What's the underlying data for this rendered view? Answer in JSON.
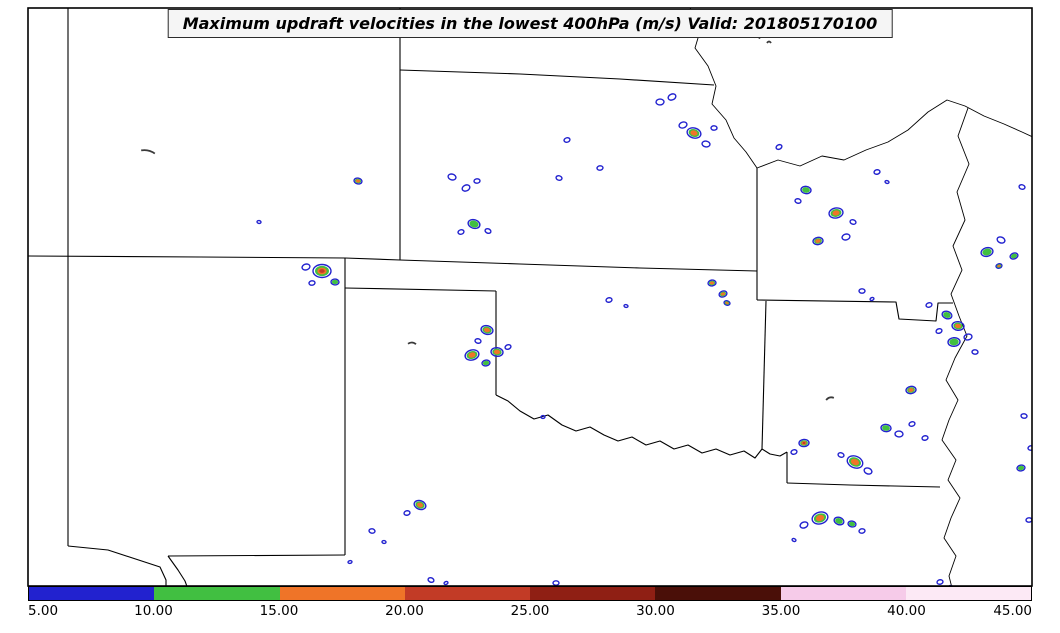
{
  "title": "Maximum updraft velocities in the lowest 400hPa (m/s) Valid: 201805170100",
  "chart_data": {
    "type": "heatmap",
    "subtype": "geographic-contour-map",
    "variable": "Maximum updraft velocities in the lowest 400hPa",
    "units": "m/s",
    "valid_time": "201805170100",
    "region": "US Central Plains (CO, NE, KS, OK, TX panhandle, NM, MO, AR)",
    "colorbar": {
      "min": 5.0,
      "max": 45.0,
      "ticks": [
        "5.00",
        "10.00",
        "15.00",
        "20.00",
        "25.00",
        "30.00",
        "35.00",
        "40.00",
        "45.00"
      ],
      "segments": [
        {
          "range": [
            5,
            10
          ],
          "color": "#2222cf"
        },
        {
          "range": [
            10,
            15
          ],
          "color": "#41bf41"
        },
        {
          "range": [
            15,
            20
          ],
          "color": "#ef7428"
        },
        {
          "range": [
            20,
            25
          ],
          "color": "#c23b26"
        },
        {
          "range": [
            25,
            30
          ],
          "color": "#8f1f14"
        },
        {
          "range": [
            30,
            35
          ],
          "color": "#4a0f08"
        },
        {
          "range": [
            35,
            40
          ],
          "color": "#f6cbe9"
        },
        {
          "range": [
            40,
            45
          ],
          "color": "#fce9f5"
        }
      ]
    },
    "level_colors": {
      "blue": "#2222cf",
      "green": "#41bf41",
      "orange": "#ef7428",
      "red": "#c23b26",
      "dash": "#3a3a3a"
    },
    "cells": [
      [
        660,
        102,
        4,
        "b"
      ],
      [
        672,
        97,
        4,
        "b"
      ],
      [
        683,
        125,
        4,
        "b"
      ],
      [
        694,
        133,
        7,
        "o"
      ],
      [
        706,
        144,
        4,
        "b"
      ],
      [
        714,
        128,
        3,
        "b"
      ],
      [
        757,
        38,
        3,
        "d"
      ],
      [
        769,
        43,
        2,
        "d"
      ],
      [
        567,
        140,
        3,
        "b"
      ],
      [
        600,
        168,
        3,
        "b"
      ],
      [
        559,
        178,
        3,
        "b"
      ],
      [
        452,
        177,
        4,
        "b"
      ],
      [
        466,
        188,
        4,
        "b"
      ],
      [
        477,
        181,
        3,
        "b"
      ],
      [
        358,
        181,
        4,
        "o"
      ],
      [
        259,
        222,
        2,
        "b"
      ],
      [
        148,
        152,
        7,
        "d"
      ],
      [
        474,
        224,
        6,
        "g"
      ],
      [
        461,
        232,
        3,
        "b"
      ],
      [
        488,
        231,
        3,
        "b"
      ],
      [
        779,
        147,
        3,
        "b"
      ],
      [
        806,
        190,
        5,
        "g"
      ],
      [
        798,
        201,
        3,
        "b"
      ],
      [
        836,
        213,
        7,
        "o"
      ],
      [
        818,
        241,
        5,
        "o"
      ],
      [
        846,
        237,
        4,
        "b"
      ],
      [
        853,
        222,
        3,
        "b"
      ],
      [
        877,
        172,
        3,
        "b"
      ],
      [
        887,
        182,
        2,
        "b"
      ],
      [
        987,
        252,
        6,
        "g"
      ],
      [
        1001,
        240,
        4,
        "b"
      ],
      [
        1014,
        256,
        4,
        "g"
      ],
      [
        999,
        266,
        3,
        "o"
      ],
      [
        1022,
        187,
        3,
        "b"
      ],
      [
        322,
        271,
        9,
        "r"
      ],
      [
        306,
        267,
        4,
        "b"
      ],
      [
        335,
        282,
        4,
        "g"
      ],
      [
        312,
        283,
        3,
        "b"
      ],
      [
        609,
        300,
        3,
        "b"
      ],
      [
        626,
        306,
        2,
        "b"
      ],
      [
        712,
        283,
        4,
        "o"
      ],
      [
        723,
        294,
        4,
        "o"
      ],
      [
        727,
        303,
        3,
        "o"
      ],
      [
        487,
        330,
        6,
        "o"
      ],
      [
        478,
        341,
        3,
        "b"
      ],
      [
        472,
        355,
        7,
        "o"
      ],
      [
        497,
        352,
        6,
        "o"
      ],
      [
        486,
        363,
        4,
        "g"
      ],
      [
        508,
        347,
        3,
        "b"
      ],
      [
        412,
        344,
        4,
        "d"
      ],
      [
        947,
        315,
        5,
        "g"
      ],
      [
        958,
        326,
        6,
        "o"
      ],
      [
        954,
        342,
        6,
        "g"
      ],
      [
        968,
        337,
        4,
        "b"
      ],
      [
        939,
        331,
        3,
        "b"
      ],
      [
        975,
        352,
        3,
        "b"
      ],
      [
        929,
        305,
        3,
        "b"
      ],
      [
        862,
        291,
        3,
        "b"
      ],
      [
        872,
        299,
        2,
        "b"
      ],
      [
        911,
        390,
        5,
        "o"
      ],
      [
        830,
        399,
        4,
        "d"
      ],
      [
        886,
        428,
        5,
        "g"
      ],
      [
        899,
        434,
        4,
        "b"
      ],
      [
        912,
        424,
        3,
        "b"
      ],
      [
        925,
        438,
        3,
        "b"
      ],
      [
        855,
        462,
        8,
        "o"
      ],
      [
        868,
        471,
        4,
        "b"
      ],
      [
        841,
        455,
        3,
        "b"
      ],
      [
        804,
        443,
        5,
        "r"
      ],
      [
        794,
        452,
        3,
        "b"
      ],
      [
        820,
        518,
        8,
        "o"
      ],
      [
        839,
        521,
        5,
        "g"
      ],
      [
        852,
        524,
        4,
        "g"
      ],
      [
        804,
        525,
        4,
        "b"
      ],
      [
        862,
        531,
        3,
        "b"
      ],
      [
        794,
        540,
        2,
        "b"
      ],
      [
        1024,
        416,
        3,
        "b"
      ],
      [
        1021,
        468,
        4,
        "g"
      ],
      [
        1031,
        448,
        3,
        "b"
      ],
      [
        1029,
        520,
        3,
        "b"
      ],
      [
        420,
        505,
        6,
        "o"
      ],
      [
        407,
        513,
        3,
        "b"
      ],
      [
        372,
        531,
        3,
        "b"
      ],
      [
        384,
        542,
        2,
        "b"
      ],
      [
        431,
        580,
        3,
        "b"
      ],
      [
        446,
        583,
        2,
        "b"
      ],
      [
        556,
        583,
        3,
        "b"
      ],
      [
        350,
        562,
        2,
        "b"
      ],
      [
        940,
        582,
        3,
        "b"
      ],
      [
        951,
        587,
        2,
        "b"
      ],
      [
        543,
        417,
        2,
        "b"
      ]
    ]
  }
}
